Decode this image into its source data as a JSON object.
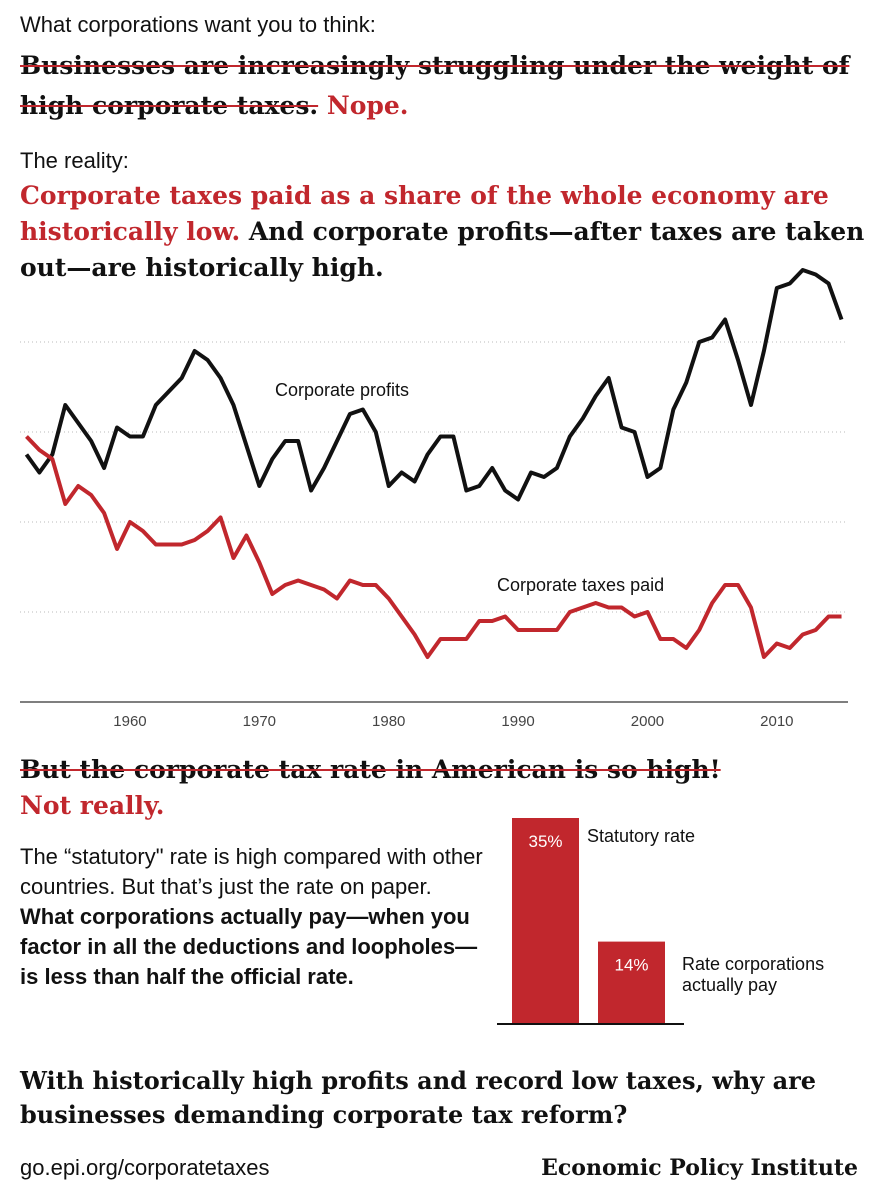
{
  "header": {
    "intro_label": "What corporations want you to think:",
    "myth": "Businesses are increasingly struggling under the weight of high corporate taxes.",
    "rebuttal": "Nope.",
    "reality_label": "The reality:",
    "reality_red": "Corporate taxes paid as a share of the whole economy are historically low.",
    "reality_black": "And corporate profits—after taxes are taken out—are historically high."
  },
  "section2": {
    "myth": "But the corporate tax rate in American is so high!",
    "rebuttal": "Not really.",
    "body_plain": "The “statutory\" rate is high compared with other countries. But that’s just the rate on paper.",
    "body_bold": "What corporations actually pay—when you factor in all the deductions and loopholes—is less than half the official rate."
  },
  "question": "With historically high profits and record low taxes, why are businesses demanding corporate tax reform?",
  "footer": {
    "url": "go.epi.org/corporatetaxes",
    "org": "Economic Policy Institute"
  },
  "chart_data": [
    {
      "type": "line",
      "x": [
        1952,
        1953,
        1954,
        1955,
        1956,
        1957,
        1958,
        1959,
        1960,
        1961,
        1962,
        1963,
        1964,
        1965,
        1966,
        1967,
        1968,
        1969,
        1970,
        1971,
        1972,
        1973,
        1974,
        1975,
        1976,
        1977,
        1978,
        1979,
        1980,
        1981,
        1982,
        1983,
        1984,
        1985,
        1986,
        1987,
        1988,
        1989,
        1990,
        1991,
        1992,
        1993,
        1994,
        1995,
        1996,
        1997,
        1998,
        1999,
        2000,
        2001,
        2002,
        2003,
        2004,
        2005,
        2006,
        2007,
        2008,
        2009,
        2010,
        2011,
        2012,
        2013,
        2014,
        2015
      ],
      "series": [
        {
          "name": "Corporate profits",
          "color": "#111111",
          "values": [
            5.5,
            5.1,
            5.5,
            6.6,
            6.2,
            5.8,
            5.2,
            6.1,
            5.9,
            5.9,
            6.6,
            6.9,
            7.2,
            7.8,
            7.6,
            7.2,
            6.6,
            5.7,
            4.8,
            5.4,
            5.8,
            5.8,
            4.7,
            5.2,
            5.8,
            6.4,
            6.5,
            6.0,
            4.8,
            5.1,
            4.9,
            5.5,
            5.9,
            5.9,
            4.7,
            4.8,
            5.2,
            4.7,
            4.5,
            5.1,
            5.0,
            5.2,
            5.9,
            6.3,
            6.8,
            7.2,
            6.1,
            6.0,
            5.0,
            5.2,
            6.5,
            7.1,
            8.0,
            8.1,
            8.5,
            7.6,
            6.6,
            7.8,
            9.2,
            9.3,
            9.6,
            9.5,
            9.3,
            8.5
          ]
        },
        {
          "name": "Corporate taxes paid",
          "color": "#c1272d",
          "values": [
            5.9,
            5.6,
            5.4,
            4.4,
            4.8,
            4.6,
            4.2,
            3.4,
            4.0,
            3.8,
            3.5,
            3.5,
            3.5,
            3.6,
            3.8,
            4.1,
            3.2,
            3.7,
            3.1,
            2.4,
            2.6,
            2.7,
            2.6,
            2.5,
            2.3,
            2.7,
            2.6,
            2.6,
            2.3,
            1.9,
            1.5,
            1.0,
            1.4,
            1.4,
            1.4,
            1.8,
            1.8,
            1.9,
            1.6,
            1.6,
            1.6,
            1.6,
            2.0,
            2.1,
            2.2,
            2.1,
            2.1,
            1.9,
            2.0,
            1.4,
            1.4,
            1.2,
            1.6,
            2.2,
            2.6,
            2.6,
            2.1,
            1.0,
            1.3,
            1.2,
            1.5,
            1.6,
            1.9,
            1.9
          ]
        }
      ],
      "xlim": [
        1951.5,
        2015.5
      ],
      "xticks": [
        1960,
        1970,
        1980,
        1990,
        2000,
        2010
      ],
      "ylim": [
        0,
        10
      ],
      "yticks": [
        2,
        4,
        6,
        8
      ],
      "grid": true
    },
    {
      "type": "bar",
      "categories": [
        "Statutory rate",
        "Rate corporations actually pay"
      ],
      "values": [
        35,
        14
      ],
      "value_labels": [
        "35%",
        "14%"
      ],
      "color": "#c1272d",
      "ylim": [
        0,
        35
      ]
    }
  ]
}
